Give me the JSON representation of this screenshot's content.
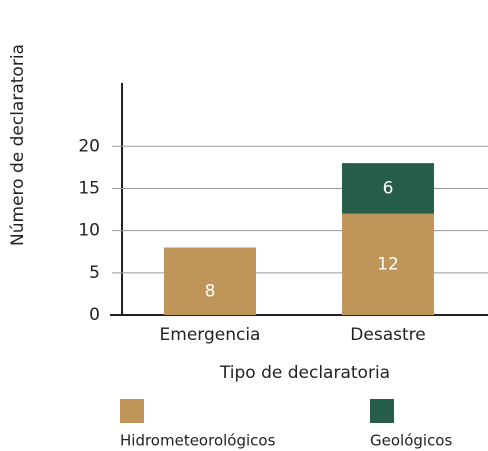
{
  "chart_data": {
    "type": "stacked_bar",
    "xlabel": "Tipo de declaratoria",
    "ylabel": "Número de declaratoria",
    "categories": [
      "Emergencia",
      "Desastre"
    ],
    "series": [
      {
        "name": "Hidrometeorológicos",
        "color": "#c0955a",
        "values": [
          8,
          12
        ]
      },
      {
        "name": "Geológicos",
        "color": "#265e4b",
        "values": [
          0,
          6
        ]
      }
    ],
    "ylim": [
      0,
      27.5
    ],
    "yticks": [
      0,
      5,
      10,
      15,
      20
    ],
    "grid": true
  }
}
